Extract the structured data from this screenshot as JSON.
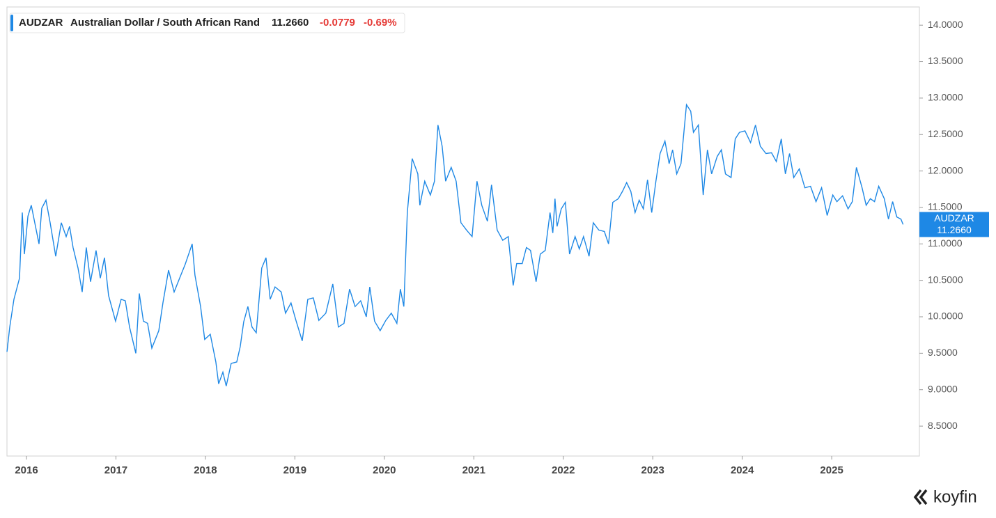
{
  "chart_data": {
    "type": "line",
    "symbol": "AUDZAR",
    "name": "Australian Dollar / South African Rand",
    "last": "11.2660",
    "change": "-0.0779",
    "change_pct": "-0.69%",
    "xlim": [
      2015.782,
      2025.98
    ],
    "xticks": [
      2016,
      2017,
      2018,
      2019,
      2020,
      2021,
      2022,
      2023,
      2024,
      2025
    ],
    "ylim": [
      8.09,
      14.25
    ],
    "yticks": [
      {
        "value": 8.5,
        "label": "8.5000"
      },
      {
        "value": 9,
        "label": "9.0000"
      },
      {
        "value": 9.5,
        "label": "9.5000"
      },
      {
        "value": 10,
        "label": "10.0000"
      },
      {
        "value": 10.5,
        "label": "10.5000"
      },
      {
        "value": 11,
        "label": "11.0000"
      },
      {
        "value": 11.5,
        "label": "11.5000"
      },
      {
        "value": 12,
        "label": "12.0000"
      },
      {
        "value": 12.5,
        "label": "12.5000"
      },
      {
        "value": 13,
        "label": "13.0000"
      },
      {
        "value": 13.5,
        "label": "13.5000"
      },
      {
        "value": 14,
        "label": "14.0000"
      }
    ],
    "x": [
      2015.782,
      2015.813,
      2015.86,
      2015.922,
      2015.953,
      2015.977,
      2016.016,
      2016.054,
      2016.093,
      2016.14,
      2016.171,
      2016.218,
      2016.265,
      2016.327,
      2016.389,
      2016.444,
      2016.482,
      2016.521,
      2016.576,
      2016.623,
      2016.669,
      2016.716,
      2016.778,
      2016.825,
      2016.872,
      2016.918,
      2016.996,
      2017.058,
      2017.105,
      2017.152,
      2017.222,
      2017.261,
      2017.307,
      2017.354,
      2017.401,
      2017.479,
      2017.525,
      2017.588,
      2017.65,
      2017.712,
      2017.774,
      2017.852,
      2017.883,
      2017.946,
      2017.992,
      2018.054,
      2018.117,
      2018.148,
      2018.195,
      2018.233,
      2018.288,
      2018.35,
      2018.389,
      2018.428,
      2018.475,
      2018.521,
      2018.568,
      2018.63,
      2018.677,
      2018.724,
      2018.778,
      2018.848,
      2018.895,
      2018.957,
      2019.012,
      2019.082,
      2019.144,
      2019.206,
      2019.268,
      2019.346,
      2019.424,
      2019.486,
      2019.549,
      2019.611,
      2019.673,
      2019.735,
      2019.798,
      2019.837,
      2019.891,
      2019.953,
      2020.016,
      2020.078,
      2020.14,
      2020.179,
      2020.218,
      2020.257,
      2020.311,
      2020.374,
      2020.397,
      2020.451,
      2020.514,
      2020.56,
      2020.599,
      2020.646,
      2020.685,
      2020.747,
      2020.802,
      2020.856,
      2020.918,
      2020.981,
      2021.035,
      2021.089,
      2021.152,
      2021.198,
      2021.261,
      2021.323,
      2021.385,
      2021.44,
      2021.479,
      2021.541,
      2021.588,
      2021.634,
      2021.696,
      2021.743,
      2021.798,
      2021.852,
      2021.883,
      2021.907,
      2021.93,
      2021.977,
      2022.023,
      2022.07,
      2022.132,
      2022.179,
      2022.226,
      2022.288,
      2022.335,
      2022.397,
      2022.459,
      2022.506,
      2022.553,
      2022.615,
      2022.661,
      2022.708,
      2022.755,
      2022.802,
      2022.848,
      2022.895,
      2022.942,
      2022.988,
      2023.035,
      2023.082,
      2023.136,
      2023.183,
      2023.222,
      2023.268,
      2023.315,
      2023.377,
      2023.424,
      2023.455,
      2023.51,
      2023.564,
      2023.611,
      2023.658,
      2023.72,
      2023.767,
      2023.813,
      2023.875,
      2023.922,
      2023.969,
      2024.031,
      2024.093,
      2024.148,
      2024.202,
      2024.265,
      2024.327,
      2024.381,
      2024.436,
      2024.482,
      2024.529,
      2024.576,
      2024.638,
      2024.7,
      2024.763,
      2024.825,
      2024.887,
      2024.949,
      2025.012,
      2025.058,
      2025.121,
      2025.183,
      2025.23,
      2025.276,
      2025.339,
      2025.385,
      2025.432,
      2025.479,
      2025.525,
      2025.588,
      2025.634,
      2025.681,
      2025.728,
      2025.774,
      2025.798
    ],
    "series": [
      {
        "name": "AUDZAR",
        "color": "#1e88e5",
        "values": [
          9.52,
          9.86,
          10.24,
          10.53,
          11.43,
          10.86,
          11.38,
          11.53,
          11.29,
          11.0,
          11.49,
          11.6,
          11.29,
          10.83,
          11.29,
          11.1,
          11.24,
          10.95,
          10.67,
          10.34,
          10.95,
          10.48,
          10.91,
          10.53,
          10.81,
          10.29,
          9.94,
          10.24,
          10.22,
          9.86,
          9.5,
          10.32,
          9.94,
          9.91,
          9.57,
          9.81,
          10.19,
          10.64,
          10.34,
          10.53,
          10.72,
          11.0,
          10.57,
          10.14,
          9.69,
          9.76,
          9.38,
          9.08,
          9.24,
          9.05,
          9.36,
          9.38,
          9.59,
          9.93,
          10.14,
          9.86,
          9.78,
          10.67,
          10.81,
          10.24,
          10.41,
          10.34,
          10.05,
          10.19,
          9.95,
          9.67,
          10.24,
          10.26,
          9.95,
          10.05,
          10.45,
          9.86,
          9.91,
          10.38,
          10.14,
          10.22,
          10.0,
          10.41,
          9.94,
          9.81,
          9.95,
          10.05,
          9.91,
          10.38,
          10.14,
          11.43,
          12.17,
          11.96,
          11.53,
          11.86,
          11.67,
          11.86,
          12.63,
          12.34,
          11.86,
          12.05,
          11.86,
          11.29,
          11.19,
          11.1,
          11.86,
          11.53,
          11.31,
          11.81,
          11.19,
          11.05,
          11.1,
          10.43,
          10.73,
          10.73,
          10.95,
          10.91,
          10.48,
          10.86,
          10.91,
          11.43,
          11.15,
          11.62,
          11.24,
          11.48,
          11.57,
          10.86,
          11.1,
          10.93,
          11.1,
          10.83,
          11.29,
          11.19,
          11.17,
          11.0,
          11.57,
          11.62,
          11.72,
          11.84,
          11.72,
          11.43,
          11.6,
          11.48,
          11.88,
          11.43,
          11.86,
          12.24,
          12.41,
          12.1,
          12.29,
          11.96,
          12.1,
          12.91,
          12.82,
          12.53,
          12.63,
          11.67,
          12.29,
          11.96,
          12.2,
          12.29,
          11.96,
          11.91,
          12.44,
          12.53,
          12.55,
          12.39,
          12.63,
          12.34,
          12.24,
          12.25,
          12.13,
          12.44,
          11.96,
          12.24,
          11.91,
          12.03,
          11.77,
          11.79,
          11.58,
          11.77,
          11.39,
          11.67,
          11.58,
          11.66,
          11.48,
          11.58,
          12.05,
          11.77,
          11.53,
          11.62,
          11.58,
          11.79,
          11.62,
          11.34,
          11.58,
          11.37,
          11.34,
          11.266
        ]
      }
    ]
  },
  "brand": "koyfin"
}
